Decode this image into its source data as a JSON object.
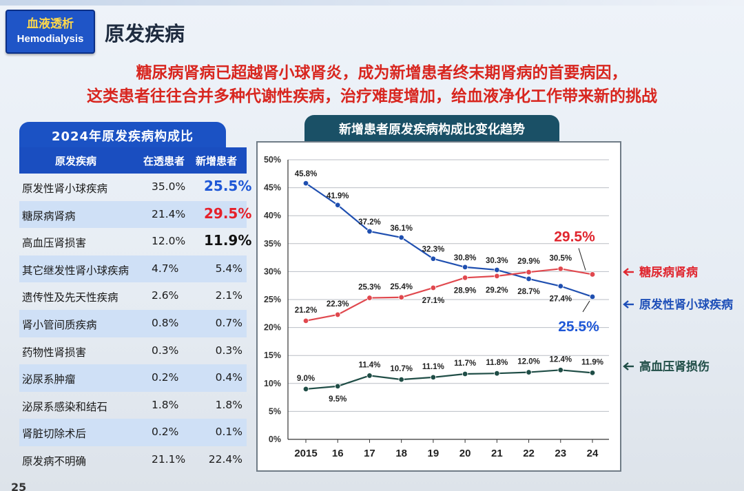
{
  "badge": {
    "cn": "血液透析",
    "en": "Hemodialysis"
  },
  "title": "原发疾病",
  "headline": {
    "line1": "糖尿病肾病已超越肾小球肾炎，成为新增患者终末期肾病的首要病因，",
    "line2": "这类患者往往合并多种代谢性疾病，治疗难度增加，给血液净化工作带来新的挑战"
  },
  "table": {
    "title": "2024年原发疾病构成比",
    "headers": {
      "disease": "原发疾病",
      "dialysis": "在透患者",
      "new": "新增患者"
    },
    "rows": [
      {
        "name": "原发性肾小球疾病",
        "dialysis": "35.0%",
        "new": "25.5%"
      },
      {
        "name": "糖尿病肾病",
        "dialysis": "21.4%",
        "new": "29.5%"
      },
      {
        "name": "高血压肾损害",
        "dialysis": "12.0%",
        "new": "11.9%"
      },
      {
        "name": "其它继发性肾小球疾病",
        "dialysis": "4.7%",
        "new": "5.4%"
      },
      {
        "name": "遗传性及先天性疾病",
        "dialysis": "2.6%",
        "new": "2.1%"
      },
      {
        "name": "肾小管间质疾病",
        "dialysis": "0.8%",
        "new": "0.7%"
      },
      {
        "name": "药物性肾损害",
        "dialysis": "0.3%",
        "new": "0.3%"
      },
      {
        "name": "泌尿系肿瘤",
        "dialysis": "0.2%",
        "new": "0.4%"
      },
      {
        "name": "泌尿系感染和结石",
        "dialysis": "1.8%",
        "new": "1.8%"
      },
      {
        "name": "肾脏切除术后",
        "dialysis": "0.2%",
        "new": "0.1%"
      },
      {
        "name": "原发病不明确",
        "dialysis": "21.1%",
        "new": "22.4%"
      }
    ],
    "highlight_colors": {
      "glomerular": "#1e57d6",
      "diabetic": "#e5202a",
      "hypertensive": "#111111"
    }
  },
  "chart_data": {
    "type": "line",
    "title": "新增患者原发疾病构成比变化趋势",
    "xlabel": "",
    "ylabel": "",
    "categories": [
      "2015",
      "16",
      "17",
      "18",
      "19",
      "20",
      "21",
      "22",
      "23",
      "24"
    ],
    "ylim": [
      0,
      50
    ],
    "yticks": [
      "0%",
      "5%",
      "10%",
      "15%",
      "20%",
      "25%",
      "30%",
      "35%",
      "40%",
      "45%",
      "50%"
    ],
    "grid": true,
    "legend": "right",
    "series": [
      {
        "name": "原发性肾小球疾病",
        "color": "#1f4fb0",
        "values": [
          45.8,
          41.9,
          37.2,
          36.1,
          32.3,
          30.8,
          30.3,
          28.7,
          27.4,
          25.5
        ],
        "labels": [
          "45.8%",
          "41.9%",
          "37.2%",
          "36.1%",
          "32.3%",
          "30.8%",
          "30.3%",
          "28.7%",
          "27.4%",
          "25.5%"
        ]
      },
      {
        "name": "糖尿病肾病",
        "color": "#e0484e",
        "values": [
          21.2,
          22.3,
          25.3,
          25.4,
          27.1,
          28.9,
          29.2,
          29.9,
          30.5,
          29.5
        ],
        "labels": [
          "21.2%",
          "22.3%",
          "25.3%",
          "25.4%",
          "27.1%",
          "28.9%",
          "29.2%",
          "29.9%",
          "30.5%",
          "29.5%"
        ]
      },
      {
        "name": "高血压肾损伤",
        "color": "#1f4d46",
        "values": [
          9.0,
          9.5,
          11.4,
          10.7,
          11.1,
          11.7,
          11.8,
          12.0,
          12.4,
          11.9
        ],
        "labels": [
          "9.0%",
          "9.5%",
          "11.4%",
          "10.7%",
          "11.1%",
          "11.7%",
          "11.8%",
          "12.0%",
          "12.4%",
          "11.9%"
        ]
      }
    ]
  },
  "slide_number": "25"
}
